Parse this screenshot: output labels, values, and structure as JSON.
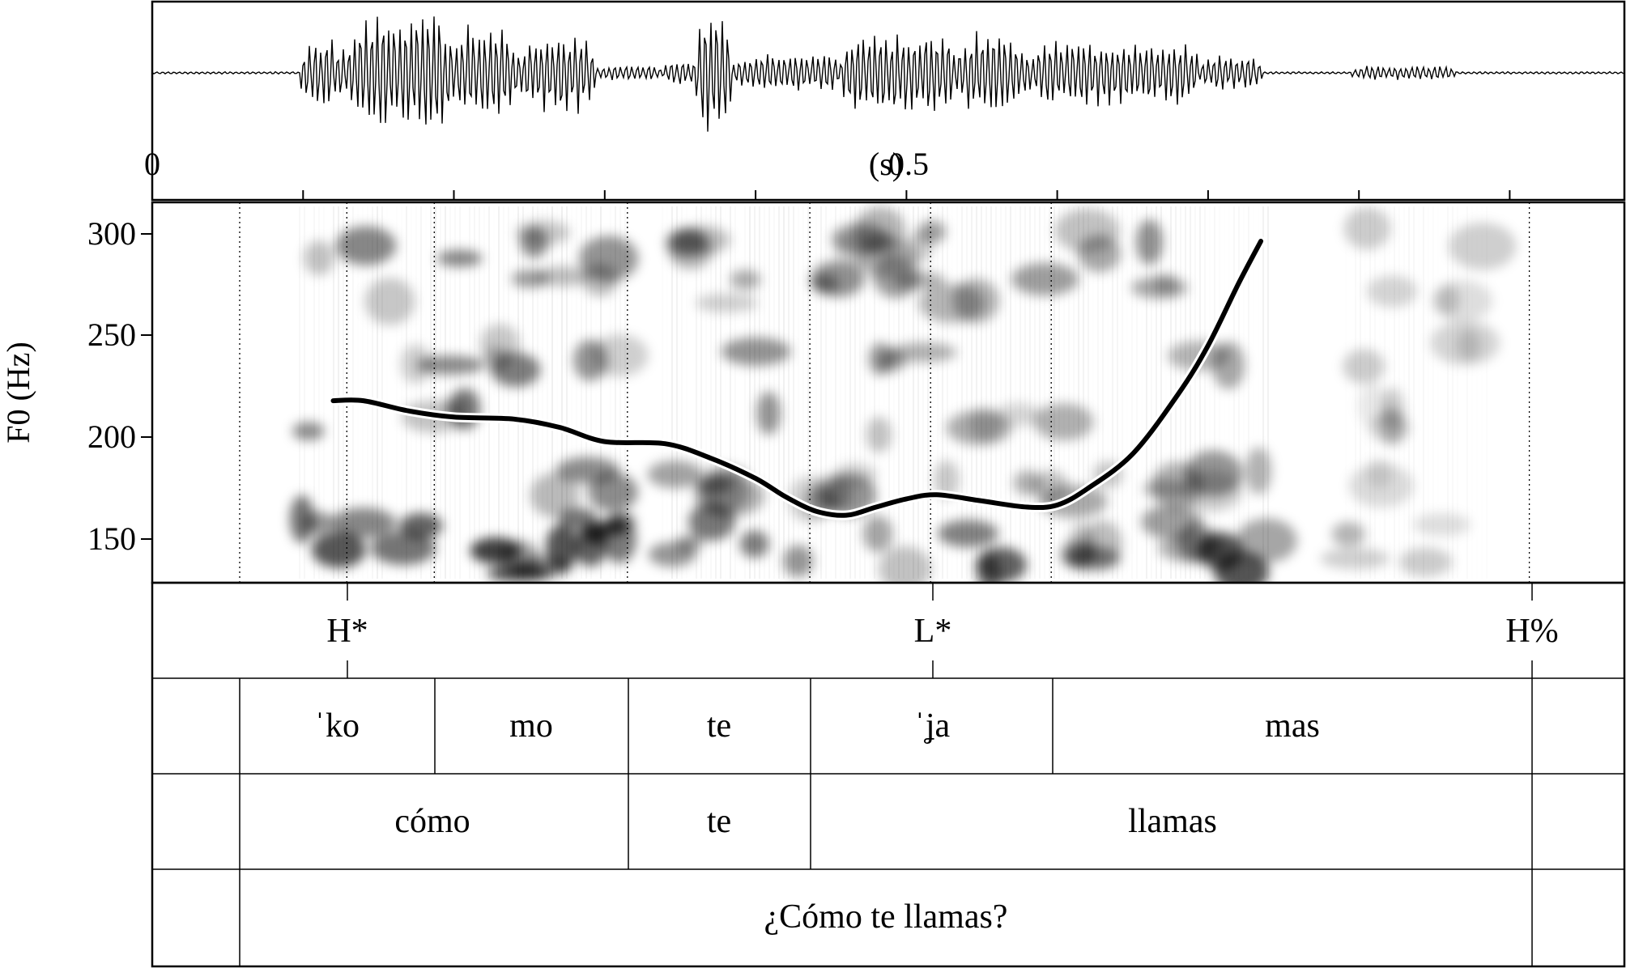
{
  "waveform": {
    "time_axis": {
      "start_label": "0",
      "mid_label": "0.5",
      "unit_label": "(s)"
    }
  },
  "pitch_panel": {
    "ylabel": "F0 (Hz)",
    "yticks": [
      "300",
      "250",
      "200",
      "150"
    ]
  },
  "chart_data": {
    "type": "line",
    "title": "",
    "xlabel": "(s)",
    "ylabel": "F0 (Hz)",
    "xlim": [
      0,
      0.976
    ],
    "ylim": [
      129,
      315
    ],
    "yticks": [
      150,
      200,
      250,
      300
    ],
    "xticks": [
      0,
      0.1,
      0.2,
      0.3,
      0.4,
      0.5,
      0.6,
      0.7,
      0.8,
      0.9
    ],
    "grid": false,
    "series": [
      {
        "name": "",
        "x": [
          0.12,
          0.14,
          0.17,
          0.2,
          0.24,
          0.27,
          0.3,
          0.34,
          0.37,
          0.4,
          0.42,
          0.44,
          0.46,
          0.48,
          0.5,
          0.52,
          0.55,
          0.58,
          0.6,
          0.62,
          0.65,
          0.68,
          0.7,
          0.72,
          0.735
        ],
        "y": [
          218,
          218,
          213,
          210,
          209,
          205,
          198,
          197,
          190,
          180,
          171,
          164,
          162,
          166,
          170,
          172,
          169,
          166,
          167,
          175,
          192,
          221,
          245,
          275,
          296
        ]
      }
    ],
    "boundaries_s": [
      0.058,
      0.129,
      0.187,
      0.315,
      0.436,
      0.516,
      0.596,
      0.913
    ]
  },
  "tiers": {
    "tones": {
      "labels": [
        "H*",
        "L*",
        "H%"
      ]
    },
    "syllables": {
      "labels": [
        "ˈko",
        "mo",
        "te",
        "ˈʝa",
        "mas"
      ]
    },
    "words": {
      "labels": [
        "cómo",
        "te",
        "llamas"
      ]
    },
    "sentence": {
      "labels": [
        "¿Cómo te llamas?"
      ]
    }
  }
}
